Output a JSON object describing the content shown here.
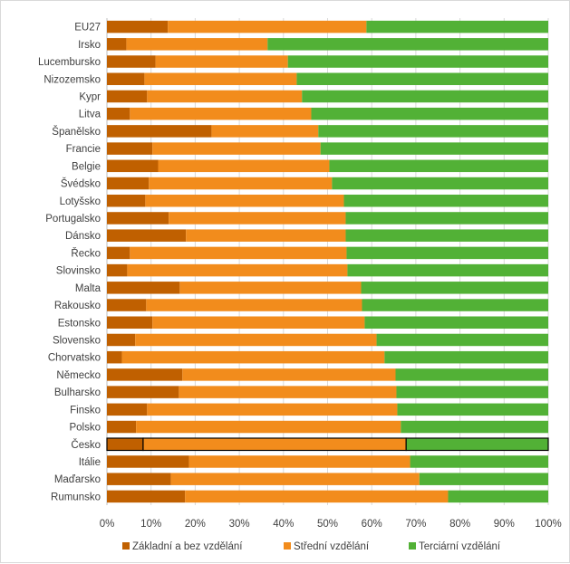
{
  "chart_data": {
    "type": "bar",
    "orientation": "horizontal",
    "stacked": "percent",
    "categories": [
      "EU27",
      "Irsko",
      "Lucembursko",
      "Nizozemsko",
      "Kypr",
      "Litva",
      "Španělsko",
      "Francie",
      "Belgie",
      "Švédsko",
      "Lotyšsko",
      "Portugalsko",
      "Dánsko",
      "Řecko",
      "Slovinsko",
      "Malta",
      "Rakousko",
      "Estonsko",
      "Slovensko",
      "Chorvatsko",
      "Německo",
      "Bulharsko",
      "Finsko",
      "Polsko",
      "Česko",
      "Itálie",
      "Maďarsko",
      "Rumunsko"
    ],
    "series": [
      {
        "name": "Základní a bez vzdělání",
        "color": "#c06000",
        "values": [
          13.8,
          4.4,
          11.0,
          8.5,
          9.1,
          5.2,
          23.7,
          10.3,
          11.6,
          9.5,
          8.7,
          14.0,
          17.9,
          5.2,
          4.6,
          16.5,
          8.9,
          10.3,
          6.4,
          3.4,
          17.1,
          16.3,
          9.1,
          6.6,
          8.2,
          18.6,
          14.5,
          17.7
        ]
      },
      {
        "name": "Střední vzdělání",
        "color": "#f28c1c",
        "values": [
          45.0,
          32.0,
          30.0,
          34.5,
          35.1,
          41.1,
          24.2,
          38.1,
          38.8,
          41.5,
          45.0,
          40.1,
          36.2,
          49.1,
          49.9,
          41.1,
          48.9,
          48.1,
          54.7,
          59.5,
          48.3,
          49.3,
          56.7,
          60.0,
          59.6,
          50.1,
          56.3,
          59.6
        ]
      },
      {
        "name": "Terciární vzdělání",
        "color": "#52b136",
        "values": [
          41.2,
          63.6,
          59.0,
          57.0,
          55.8,
          53.7,
          52.1,
          51.6,
          49.6,
          49.0,
          46.3,
          45.9,
          45.9,
          45.7,
          45.5,
          42.4,
          42.2,
          41.6,
          38.9,
          37.1,
          34.6,
          34.4,
          34.2,
          33.4,
          32.2,
          31.3,
          29.2,
          22.7
        ]
      }
    ],
    "highlighted_category": "Česko",
    "xlim": [
      0,
      100
    ],
    "xticks": [
      "0%",
      "10%",
      "20%",
      "30%",
      "40%",
      "50%",
      "60%",
      "70%",
      "80%",
      "90%",
      "100%"
    ],
    "grid": true,
    "legend": "bottom",
    "title": "",
    "xlabel": "",
    "ylabel": ""
  }
}
